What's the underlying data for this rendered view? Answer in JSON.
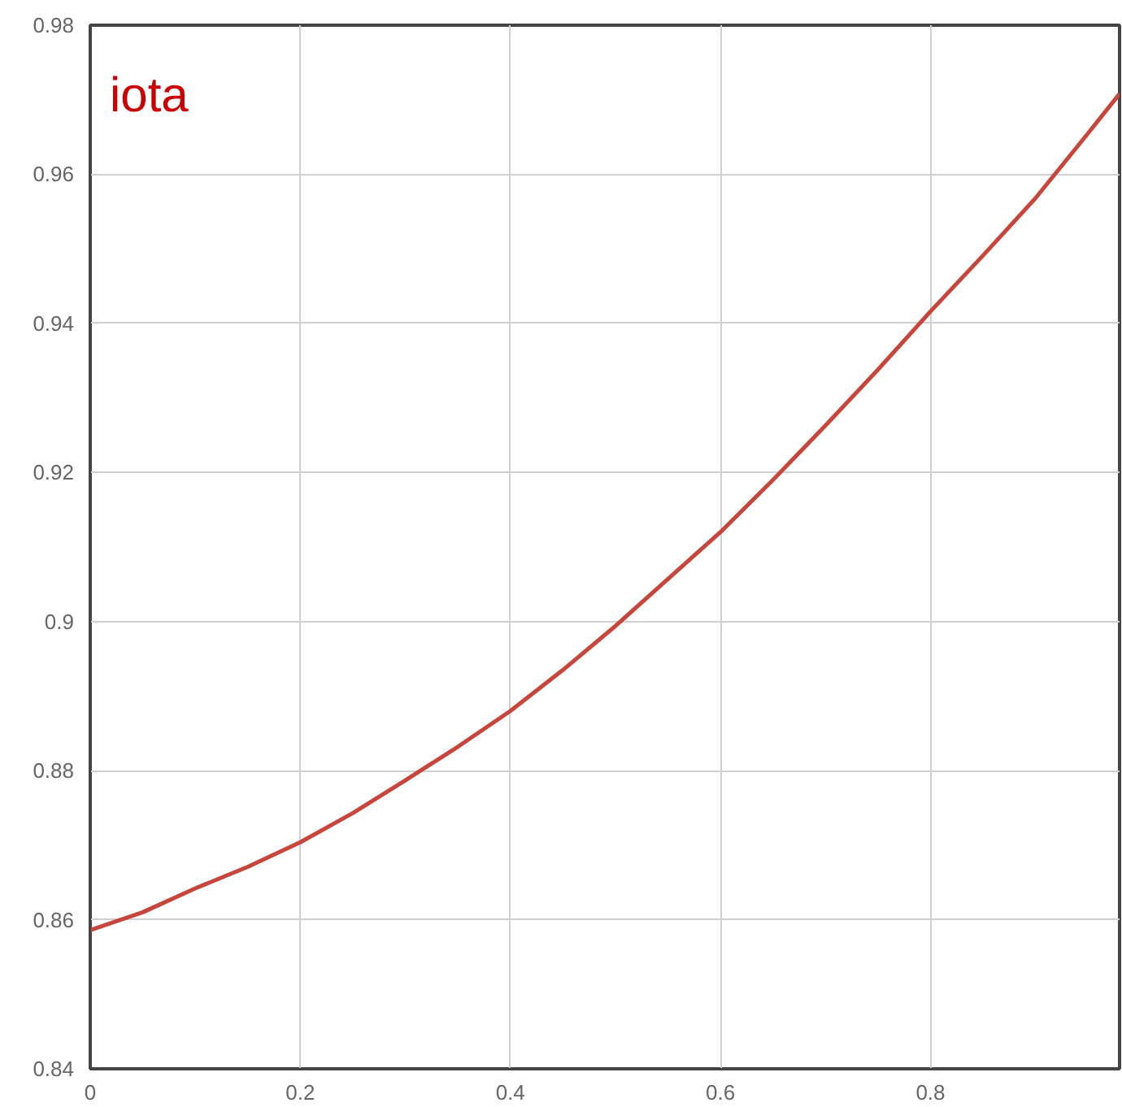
{
  "chart_data": {
    "type": "line",
    "title": "iota",
    "x": [
      0,
      0.05,
      0.1,
      0.15,
      0.2,
      0.25,
      0.3,
      0.35,
      0.4,
      0.45,
      0.5,
      0.55,
      0.6,
      0.65,
      0.7,
      0.75,
      0.8,
      0.85,
      0.9,
      0.95,
      0.98
    ],
    "series": [
      {
        "color": "#c8453b",
        "values": [
          0.8586,
          0.861,
          0.8642,
          0.8671,
          0.8704,
          0.8743,
          0.8787,
          0.8832,
          0.888,
          0.8935,
          0.8994,
          0.9057,
          0.912,
          0.919,
          0.9263,
          0.9338,
          0.9416,
          0.9491,
          0.9568,
          0.9655,
          0.9708
        ]
      }
    ],
    "xlim": [
      0,
      0.98
    ],
    "ylim": [
      0.84,
      0.98
    ],
    "xticks": [
      0,
      0.2,
      0.4,
      0.6,
      0.8
    ],
    "yticks": [
      0.84,
      0.86,
      0.88,
      {
        "value": 0.9,
        "label": "0.9"
      },
      0.92,
      0.94,
      0.96,
      0.98
    ],
    "grid": true,
    "marker": "none",
    "line_style": "solid"
  }
}
